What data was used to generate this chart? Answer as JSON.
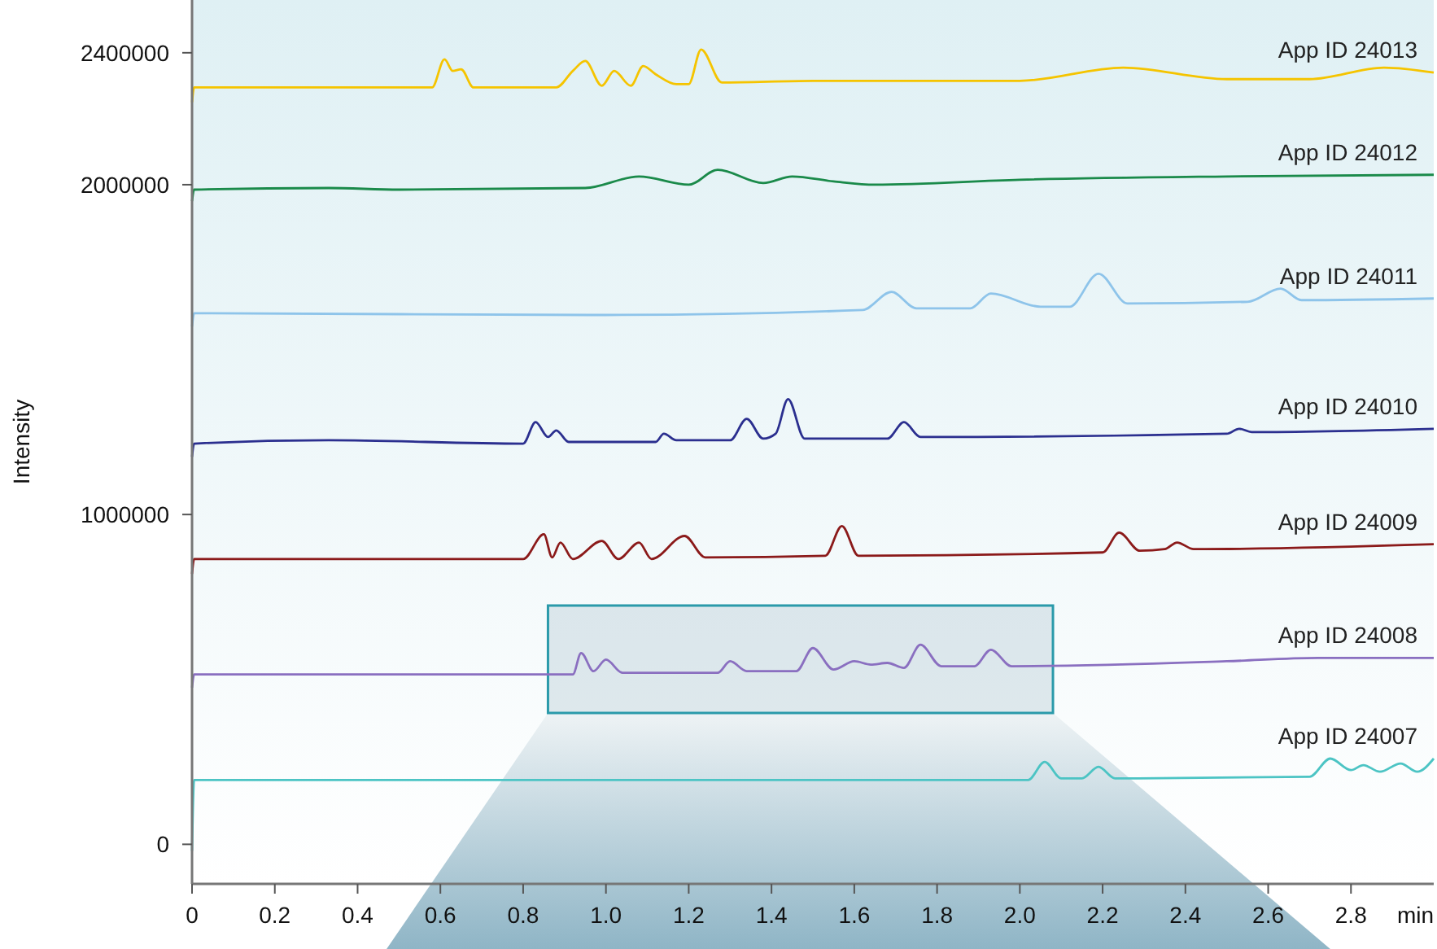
{
  "chart_data": {
    "type": "line",
    "ylabel": "Intensity",
    "xlabel": "min",
    "xlim": [
      0,
      3.0
    ],
    "ylim": [
      -120000,
      2560000
    ],
    "xticks": [
      0,
      0.2,
      0.4,
      0.6,
      0.8,
      {
        "value": 1,
        "label": "1.0"
      },
      1.2,
      1.4,
      1.6,
      1.8,
      {
        "value": 2,
        "label": "2.0"
      },
      2.2,
      2.4,
      2.6,
      2.8
    ],
    "yticks": [
      0,
      1000000,
      2000000,
      2400000
    ],
    "grid": false,
    "marker": "none",
    "line_style": "solid",
    "series": [
      {
        "name": "App ID 24013",
        "color": "#f5c400",
        "x": [
          0,
          0.005,
          0.3,
          0.58,
          0.61,
          0.63,
          0.65,
          0.68,
          0.88,
          0.92,
          0.95,
          0.99,
          1.02,
          1.06,
          1.09,
          1.12,
          1.17,
          1.2,
          1.23,
          1.28,
          1.5,
          2.0,
          2.25,
          2.5,
          2.7,
          2.88,
          3.0
        ],
        "values": [
          2250000,
          2295000,
          2295000,
          2295000,
          2380000,
          2345000,
          2350000,
          2295000,
          2295000,
          2345000,
          2375000,
          2300000,
          2345000,
          2300000,
          2360000,
          2335000,
          2305000,
          2305000,
          2410000,
          2310000,
          2315000,
          2315000,
          2355000,
          2320000,
          2320000,
          2355000,
          2340000
        ]
      },
      {
        "name": "App ID 24012",
        "color": "#1a8a4a",
        "x": [
          0,
          0.005,
          0.33,
          0.5,
          0.95,
          1.08,
          1.2,
          1.27,
          1.38,
          1.45,
          1.55,
          1.65,
          2.0,
          2.5,
          3.0
        ],
        "values": [
          1950000,
          1985000,
          1990000,
          1985000,
          1990000,
          2025000,
          2000000,
          2045000,
          2005000,
          2025000,
          2010000,
          2000000,
          2015000,
          2025000,
          2030000
        ]
      },
      {
        "name": "App ID 24011",
        "color": "#8ec4ea",
        "x": [
          0,
          0.005,
          1.0,
          1.62,
          1.69,
          1.75,
          1.88,
          1.93,
          2.05,
          2.12,
          2.19,
          2.26,
          2.55,
          2.63,
          2.68,
          3.0
        ],
        "values": [
          1570000,
          1610000,
          1605000,
          1620000,
          1675000,
          1625000,
          1625000,
          1670000,
          1630000,
          1630000,
          1730000,
          1640000,
          1645000,
          1685000,
          1650000,
          1655000
        ]
      },
      {
        "name": "App ID 24010",
        "color": "#2b2f8f",
        "x": [
          0,
          0.005,
          0.33,
          0.8,
          0.83,
          0.86,
          0.88,
          0.91,
          1.12,
          1.14,
          1.17,
          1.3,
          1.34,
          1.38,
          1.41,
          1.44,
          1.48,
          1.68,
          1.72,
          1.76,
          2.5,
          2.53,
          2.56,
          3.0
        ],
        "values": [
          1175000,
          1215000,
          1225000,
          1215000,
          1280000,
          1235000,
          1255000,
          1220000,
          1220000,
          1245000,
          1225000,
          1225000,
          1290000,
          1230000,
          1245000,
          1350000,
          1230000,
          1230000,
          1280000,
          1235000,
          1245000,
          1260000,
          1250000,
          1260000
        ]
      },
      {
        "name": "App ID 24009",
        "color": "#8b1a1a",
        "x": [
          0,
          0.005,
          0.8,
          0.85,
          0.87,
          0.89,
          0.92,
          0.99,
          1.03,
          1.08,
          1.11,
          1.19,
          1.24,
          1.53,
          1.57,
          1.61,
          2.2,
          2.24,
          2.29,
          2.35,
          2.38,
          2.42,
          3.0
        ],
        "values": [
          820000,
          865000,
          865000,
          940000,
          870000,
          915000,
          865000,
          920000,
          865000,
          915000,
          865000,
          935000,
          870000,
          875000,
          965000,
          875000,
          885000,
          945000,
          890000,
          895000,
          915000,
          895000,
          910000
        ]
      },
      {
        "name": "App ID 24008",
        "color": "#8a6fc0",
        "x": [
          0,
          0.005,
          0.92,
          0.94,
          0.97,
          1.0,
          1.04,
          1.27,
          1.3,
          1.34,
          1.46,
          1.5,
          1.55,
          1.6,
          1.64,
          1.68,
          1.72,
          1.76,
          1.81,
          1.89,
          1.93,
          1.98,
          2.5,
          2.72,
          3.0
        ],
        "values": [
          475000,
          515000,
          515000,
          580000,
          525000,
          560000,
          520000,
          520000,
          555000,
          525000,
          525000,
          595000,
          530000,
          555000,
          545000,
          550000,
          535000,
          605000,
          540000,
          540000,
          590000,
          540000,
          555000,
          565000,
          565000
        ]
      },
      {
        "name": "App ID 24007",
        "color": "#4cc4c4",
        "x": [
          0,
          0.005,
          1.0,
          2.02,
          2.06,
          2.1,
          2.15,
          2.19,
          2.23,
          2.7,
          2.75,
          2.8,
          2.83,
          2.87,
          2.92,
          2.96,
          3.0
        ],
        "values": [
          -20000,
          195000,
          195000,
          195000,
          250000,
          200000,
          200000,
          235000,
          200000,
          205000,
          260000,
          225000,
          240000,
          220000,
          245000,
          220000,
          260000
        ]
      }
    ]
  }
}
